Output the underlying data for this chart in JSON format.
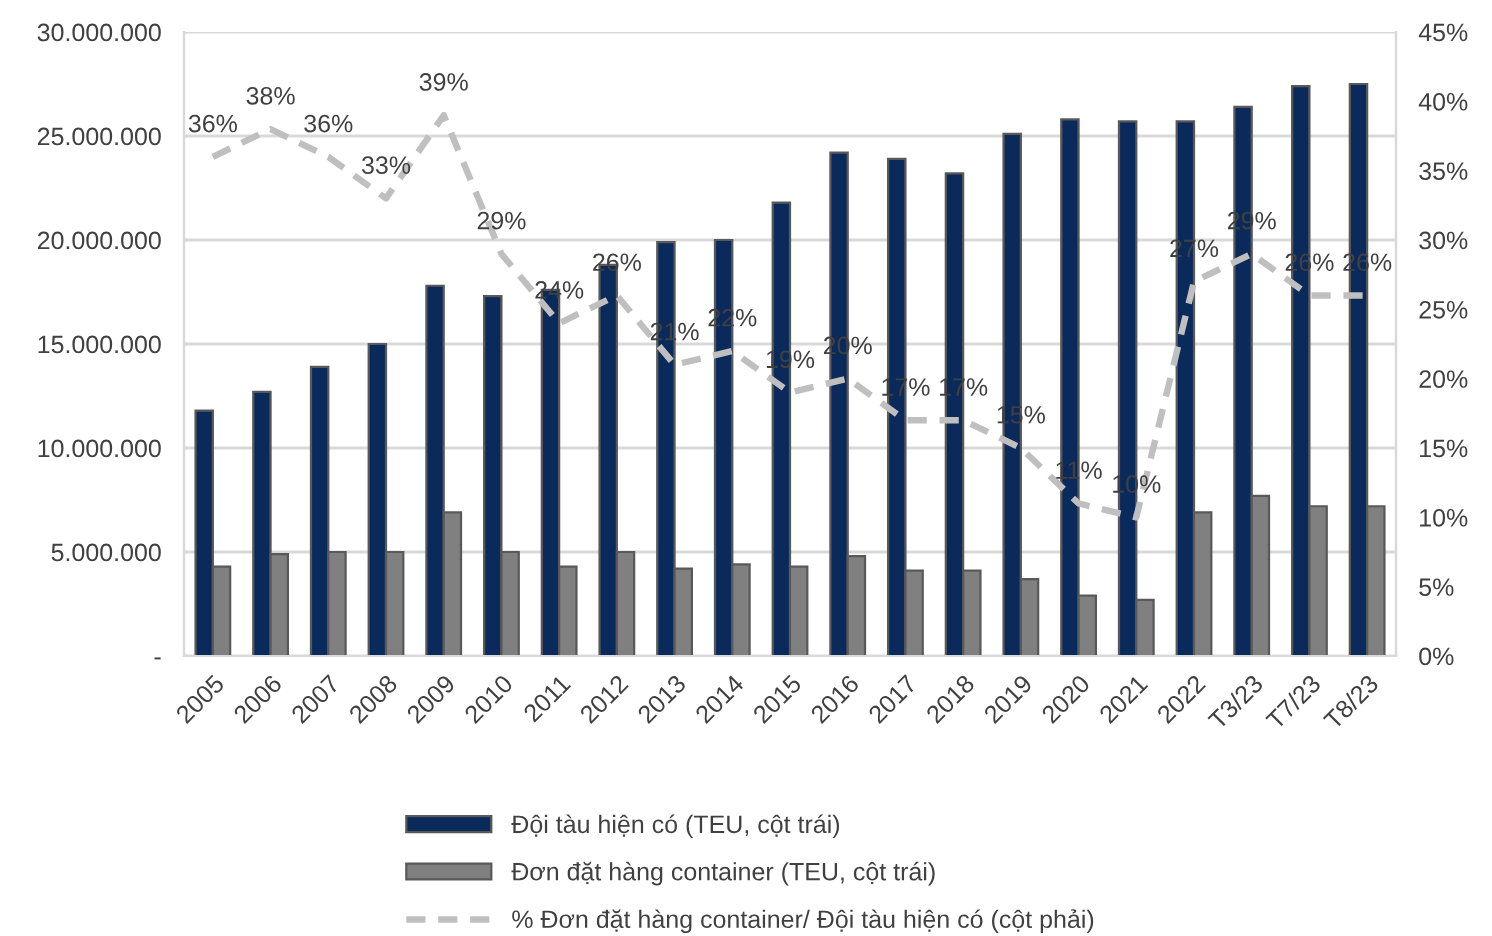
{
  "chart_data": {
    "type": "bar",
    "categories": [
      "2005",
      "2006",
      "2007",
      "2008",
      "2009",
      "2010",
      "2011",
      "2012",
      "2013",
      "2014",
      "2015",
      "2016",
      "2017",
      "2018",
      "2019",
      "2020",
      "2021",
      "2022",
      "T3/23",
      "T7/23",
      "T8/23"
    ],
    "series": [
      {
        "name": "Đội tàu hiện có (TEU, cột trái)",
        "color": "#0b2a5c",
        "values": [
          11800000,
          12700000,
          13900000,
          15000000,
          17800000,
          17300000,
          17600000,
          18800000,
          19900000,
          20000000,
          21800000,
          24200000,
          23900000,
          23200000,
          25100000,
          25800000,
          25700000,
          25700000,
          26400000,
          27400000,
          27500000
        ]
      },
      {
        "name": "Đơn đặt hàng container (TEU, cột trái)",
        "color": "#808080",
        "values": [
          4300000,
          4900000,
          5000000,
          5000000,
          6900000,
          5000000,
          4300000,
          5000000,
          4200000,
          4400000,
          4300000,
          4800000,
          4100000,
          4100000,
          3700000,
          2900000,
          2700000,
          6900000,
          7700000,
          7200000,
          7200000
        ]
      },
      {
        "name": "% Đơn đặt hàng container/ Đội tàu hiện có (cột phải)",
        "type": "line",
        "axis": "y2",
        "color": "#bfbfbf",
        "line_style": "dashed",
        "marker": "none",
        "values": [
          36,
          38,
          36,
          33,
          39,
          29,
          24,
          26,
          21,
          22,
          19,
          20,
          17,
          17,
          15,
          11,
          10,
          27,
          29,
          26,
          26
        ],
        "value_labels": [
          "36%",
          "38%",
          "36%",
          "33%",
          "39%",
          "29%",
          "24%",
          "26%",
          "21%",
          "22%",
          "19%",
          "20%",
          "17%",
          "17%",
          "15%",
          "11%",
          "10%",
          "27%",
          "29%",
          "26%",
          "26%"
        ]
      }
    ],
    "ylim": [
      0,
      30000000
    ],
    "yticks": [
      {
        "value": 0,
        "label": "-"
      },
      {
        "value": 5000000,
        "label": "5.000.000"
      },
      {
        "value": 10000000,
        "label": "10.000.000"
      },
      {
        "value": 15000000,
        "label": "15.000.000"
      },
      {
        "value": 20000000,
        "label": "20.000.000"
      },
      {
        "value": 25000000,
        "label": "25.000.000"
      },
      {
        "value": 30000000,
        "label": "30.000.000"
      }
    ],
    "y2lim": [
      0,
      45
    ],
    "y2ticks": [
      {
        "value": 0,
        "label": "0%"
      },
      {
        "value": 5,
        "label": "5%"
      },
      {
        "value": 10,
        "label": "10%"
      },
      {
        "value": 15,
        "label": "15%"
      },
      {
        "value": 20,
        "label": "20%"
      },
      {
        "value": 25,
        "label": "25%"
      },
      {
        "value": 30,
        "label": "30%"
      },
      {
        "value": 35,
        "label": "35%"
      },
      {
        "value": 40,
        "label": "40%"
      },
      {
        "value": 45,
        "label": "45%"
      }
    ],
    "grid": "y",
    "legend": "bottom"
  }
}
